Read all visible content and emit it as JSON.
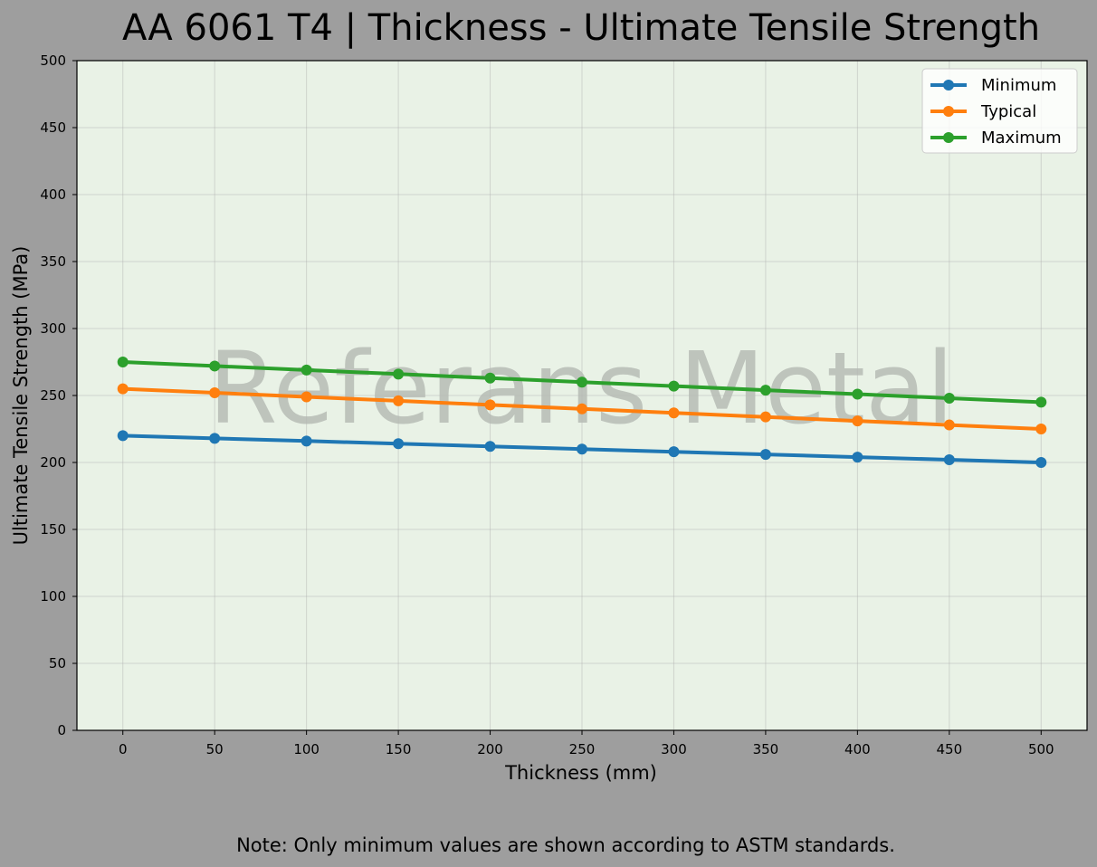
{
  "chart_data": {
    "type": "line",
    "title": "AA 6061 T4 | Thickness - Ultimate Tensile Strength",
    "xlabel": "Thickness (mm)",
    "ylabel": "Ultimate Tensile Strength (MPa)",
    "x": [
      0,
      50,
      100,
      150,
      200,
      250,
      300,
      350,
      400,
      450,
      500
    ],
    "xlim": [
      -25,
      525
    ],
    "ylim": [
      0,
      500
    ],
    "xticks": [
      "0",
      "50",
      "100",
      "150",
      "200",
      "250",
      "300",
      "350",
      "400",
      "450",
      "500"
    ],
    "yticks": [
      "0",
      "50",
      "100",
      "150",
      "200",
      "250",
      "300",
      "350",
      "400",
      "450",
      "500"
    ],
    "grid": true,
    "legend_position": "top-right",
    "series": [
      {
        "name": "Minimum",
        "color": "#1f77b4",
        "values": [
          220,
          218,
          216,
          214,
          212,
          210,
          208,
          206,
          204,
          202,
          200
        ]
      },
      {
        "name": "Typical",
        "color": "#ff7f0e",
        "values": [
          255,
          252,
          249,
          246,
          243,
          240,
          237,
          234,
          231,
          228,
          225
        ]
      },
      {
        "name": "Maximum",
        "color": "#2ca02c",
        "values": [
          275,
          272,
          269,
          266,
          263,
          260,
          257,
          254,
          251,
          248,
          245
        ]
      }
    ],
    "watermark": "Referans Metal",
    "note": "Note: Only minimum values are shown according to ASTM standards.",
    "plot_background": "#e9f2e6",
    "figure_background": "#9e9e9e"
  }
}
